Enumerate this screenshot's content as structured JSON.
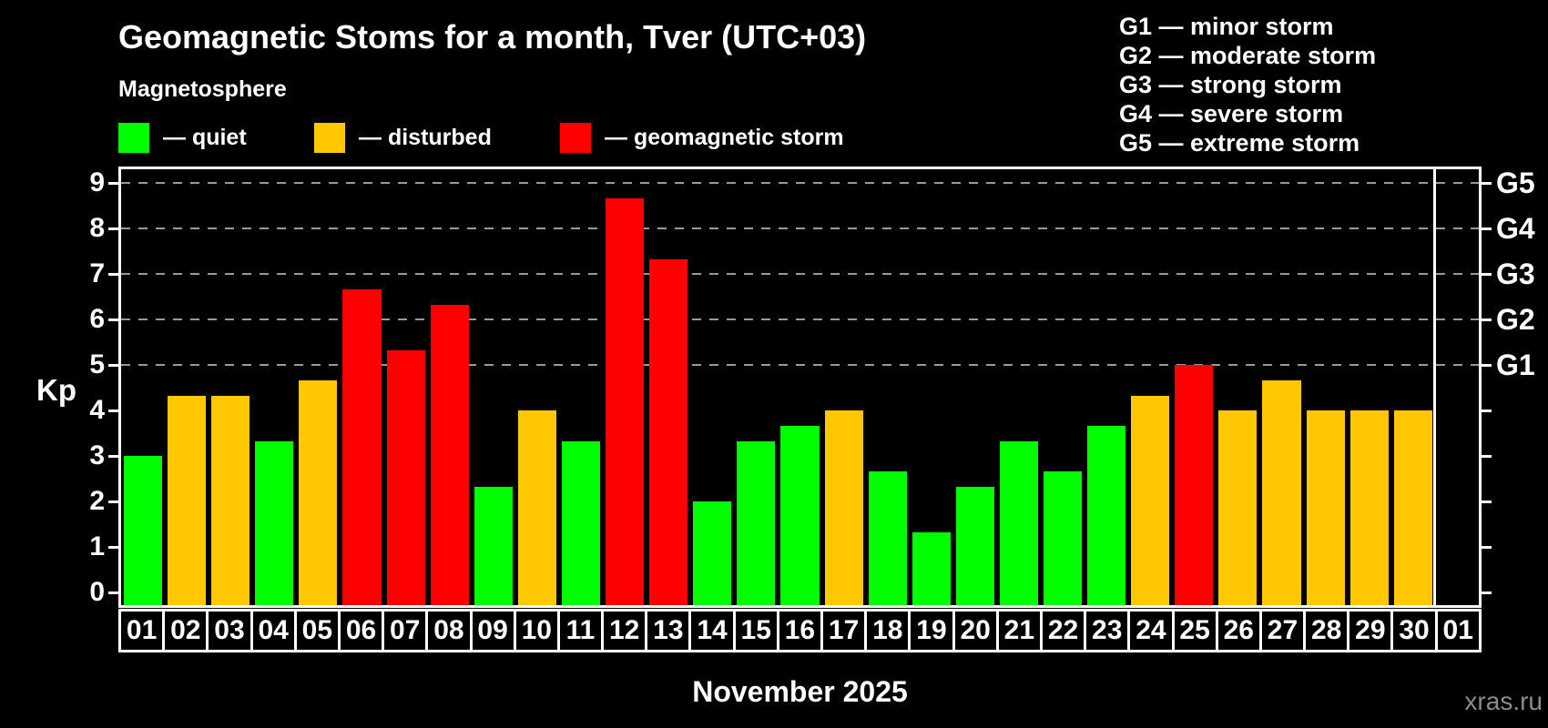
{
  "header": {
    "title": "Geomagnetic Stoms for a month, Tver (UTC+03)",
    "subtitle": "Magnetosphere"
  },
  "status_legend": [
    {
      "key": "quiet",
      "label": "— quiet"
    },
    {
      "key": "disturbed",
      "label": "— disturbed"
    },
    {
      "key": "storm",
      "label": "— geomagnetic storm"
    }
  ],
  "g_scale_legend": [
    "G1 — minor storm",
    "G2 — moderate storm",
    "G3 — strong storm",
    "G4 — severe storm",
    "G5 — extreme storm"
  ],
  "axis": {
    "kp_label": "Kp",
    "left_ticks": [
      "0",
      "1",
      "2",
      "3",
      "4",
      "5",
      "6",
      "7",
      "8",
      "9"
    ],
    "right_tick_labels": [
      {
        "kp": 9,
        "label": "G5"
      },
      {
        "kp": 8,
        "label": "G4"
      },
      {
        "kp": 7,
        "label": "G3"
      },
      {
        "kp": 6,
        "label": "G2"
      },
      {
        "kp": 5,
        "label": "G1"
      }
    ]
  },
  "x_axis_title": "November 2025",
  "watermark": "xras.ru",
  "colors": {
    "quiet": "#00FF00",
    "disturbed": "#FFC800",
    "storm": "#FF0000",
    "grid": "#999999",
    "axis": "#FFFFFF",
    "background": "#000000",
    "watermark": "#8C8C8C"
  },
  "chart_data": {
    "type": "bar",
    "title": "Geomagnetic Stoms for a month, Tver (UTC+03)",
    "xlabel": "November 2025",
    "ylabel": "Kp",
    "ylim": [
      0,
      9
    ],
    "grid": "dashed horizontal at Kp 5,6,7,8,9 (G1–G5) only",
    "legend_position": "top",
    "categories": [
      "01",
      "02",
      "03",
      "04",
      "05",
      "06",
      "07",
      "08",
      "09",
      "10",
      "11",
      "12",
      "13",
      "14",
      "15",
      "16",
      "17",
      "18",
      "19",
      "20",
      "21",
      "22",
      "23",
      "24",
      "25",
      "26",
      "27",
      "28",
      "29",
      "30",
      "01"
    ],
    "series": [
      {
        "name": "Kp index",
        "values": [
          3.0,
          4.33,
          4.33,
          3.33,
          4.67,
          6.67,
          5.33,
          6.33,
          2.33,
          4.0,
          3.33,
          8.67,
          7.33,
          2.0,
          3.33,
          3.67,
          4.0,
          2.67,
          1.33,
          2.33,
          3.33,
          2.67,
          3.67,
          4.33,
          5.0,
          4.0,
          4.67,
          4.0,
          4.0,
          4.0,
          null
        ]
      }
    ],
    "statuses": [
      "quiet",
      "disturbed",
      "disturbed",
      "quiet",
      "disturbed",
      "storm",
      "storm",
      "storm",
      "quiet",
      "disturbed",
      "quiet",
      "storm",
      "storm",
      "quiet",
      "quiet",
      "quiet",
      "disturbed",
      "quiet",
      "quiet",
      "quiet",
      "quiet",
      "quiet",
      "quiet",
      "disturbed",
      "storm",
      "disturbed",
      "disturbed",
      "disturbed",
      "disturbed",
      "disturbed",
      null
    ],
    "thresholds": {
      "quiet": "Kp < 4",
      "disturbed": "4 <= Kp < 5",
      "storm": "Kp >= 5"
    }
  }
}
